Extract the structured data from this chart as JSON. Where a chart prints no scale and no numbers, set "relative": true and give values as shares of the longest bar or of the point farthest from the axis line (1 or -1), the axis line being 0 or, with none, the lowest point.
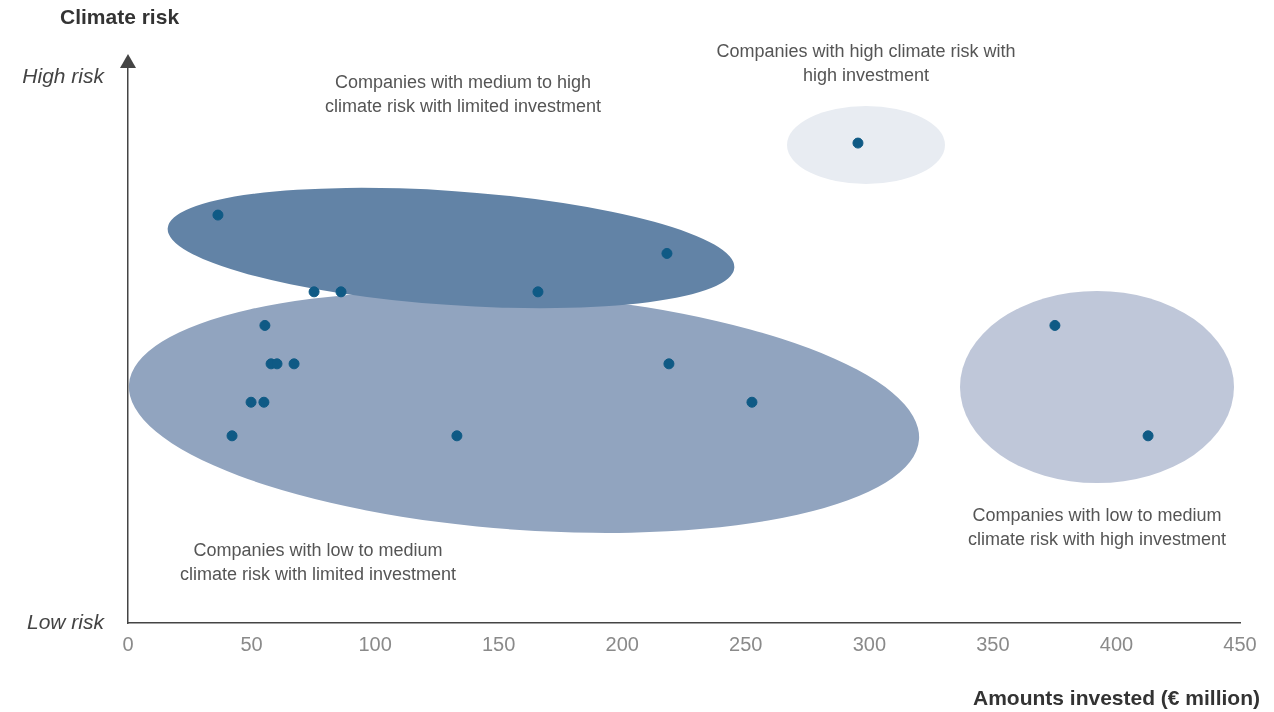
{
  "chart_data": {
    "type": "scatter",
    "xlabel": "Amounts invested (€ million)",
    "x": [
      36.4,
      218.1,
      75.3,
      86.2,
      165.9,
      55.4,
      57.9,
      60.3,
      67.2,
      218.9,
      49.8,
      55.0,
      252.5,
      42.1,
      133.1,
      295.4,
      375.1,
      412.8
    ],
    "values": [
      0.85,
      0.77,
      0.69,
      0.69,
      0.69,
      0.62,
      0.54,
      0.54,
      0.54,
      0.54,
      0.46,
      0.46,
      0.46,
      0.39,
      0.39,
      1,
      0.62,
      0.39
    ],
    "relative": true,
    "color": "#0f5a85",
    "marker": "circle",
    "xlim": [
      0,
      450
    ],
    "xticks": [
      0,
      50,
      100,
      150,
      200,
      250,
      300,
      350,
      400,
      450
    ],
    "annotations": [
      "Climate risk",
      "High risk",
      "Low risk",
      "Companies with medium to high climate risk with limited investment",
      "Companies with high climate risk with high investment",
      "Companies with low to medium climate risk with high investment",
      "Companies with low to medium climate risk with limited investment"
    ]
  }
}
